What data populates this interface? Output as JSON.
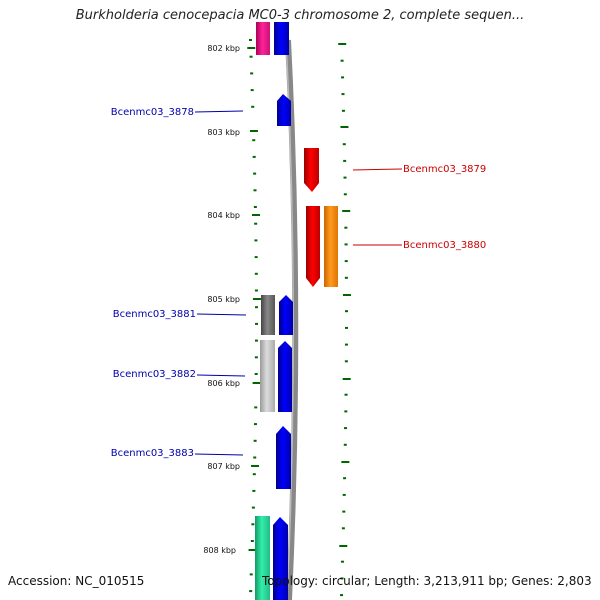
{
  "title": "Burkholderia cenocepacia MC0-3 chromosome 2, complete sequen...",
  "footer": {
    "accession": "Accession: NC_010515",
    "topology": "Topology: circular; Length: 3,213,911 bp; Genes: 2,803"
  },
  "ruler": {
    "labels": [
      {
        "text": "802 kbp",
        "kbp": 802
      },
      {
        "text": "803 kbp",
        "kbp": 803
      },
      {
        "text": "804 kbp",
        "kbp": 804
      },
      {
        "text": "805 kbp",
        "kbp": 805
      },
      {
        "text": "806 kbp",
        "kbp": 806
      },
      {
        "text": "807 kbp",
        "kbp": 807
      },
      {
        "text": "808 kbp",
        "kbp": 808
      }
    ]
  },
  "genes": [
    {
      "name": "Bcenmc03_3878",
      "color": "#0000cc",
      "strand": "forward",
      "start_kbp": 802.55,
      "end_kbp": 802.92
    },
    {
      "name": "Bcenmc03_3879",
      "color": "#cc0000",
      "strand": "reverse",
      "start_kbp": 803.23,
      "end_kbp": 803.74
    },
    {
      "name": "Bcenmc03_3880",
      "color": "#cc0000",
      "strand": "reverse",
      "start_kbp": 803.93,
      "end_kbp": 804.88
    },
    {
      "name": "Bcenmc03_3881",
      "color": "#0000cc",
      "strand": "forward",
      "start_kbp": 804.97,
      "end_kbp": 805.43
    },
    {
      "name": "Bcenmc03_3882",
      "color": "#0000cc",
      "strand": "forward",
      "start_kbp": 805.5,
      "end_kbp": 806.35
    },
    {
      "name": "Bcenmc03_3883",
      "color": "#0000cc",
      "strand": "forward",
      "start_kbp": 806.55,
      "end_kbp": 807.27
    }
  ],
  "colors": {
    "forward_gene": "#0000ee",
    "reverse_gene": "#ee0000",
    "orange_track": "#ff8800",
    "magenta_track": "#ee1188",
    "teal_track": "#22dd99",
    "dark_gray_track": "#666666",
    "light_gray_track": "#bbbbbb",
    "tick_green": "#006600",
    "backbone": "#888888"
  }
}
